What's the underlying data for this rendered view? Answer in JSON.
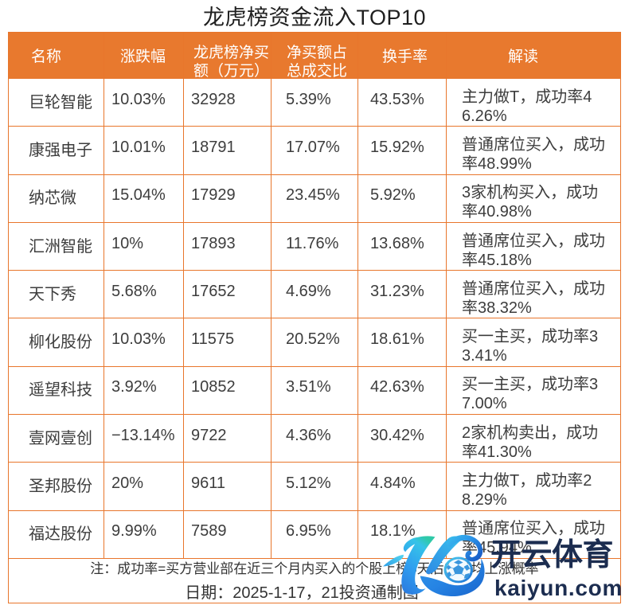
{
  "title": "龙虎榜资金流入TOP10",
  "table": {
    "columns": [
      {
        "key": "name",
        "label": "名称",
        "lines": [
          "名称"
        ]
      },
      {
        "key": "change_pct",
        "label": "涨跌幅",
        "lines": [
          "涨跌幅"
        ]
      },
      {
        "key": "net_buy_wan",
        "label": "龙虎榜净买额（万元）",
        "lines": [
          "龙虎榜净买",
          "额（万元）"
        ]
      },
      {
        "key": "net_buy_ratio",
        "label": "净买额占总成交比",
        "lines": [
          "净买额占",
          "总成交比"
        ]
      },
      {
        "key": "turnover",
        "label": "换手率",
        "lines": [
          "换手率"
        ]
      },
      {
        "key": "interpretation",
        "label": "解读",
        "lines": [
          "解读"
        ]
      }
    ],
    "rows": [
      {
        "name": "巨轮智能",
        "change_pct": "10.03%",
        "net_buy_wan": "32928",
        "net_buy_ratio": "5.39%",
        "turnover": "43.53%",
        "interpretation": "主力做T，成功率46.26%",
        "interpretation_lines": [
          "主力做T，成功率4",
          "6.26%"
        ]
      },
      {
        "name": "康强电子",
        "change_pct": "10.01%",
        "net_buy_wan": "18791",
        "net_buy_ratio": "17.07%",
        "turnover": "15.92%",
        "interpretation": "普通席位买入，成功率48.99%",
        "interpretation_lines": [
          "普通席位买入，成功",
          "率48.99%"
        ]
      },
      {
        "name": "纳芯微",
        "change_pct": "15.04%",
        "net_buy_wan": "17929",
        "net_buy_ratio": "23.45%",
        "turnover": "5.92%",
        "interpretation": "3家机构买入，成功率40.98%",
        "interpretation_lines": [
          "3家机构买入，成功",
          "率40.98%"
        ]
      },
      {
        "name": "汇洲智能",
        "change_pct": "10%",
        "net_buy_wan": "17893",
        "net_buy_ratio": "11.76%",
        "turnover": "13.68%",
        "interpretation": "普通席位买入，成功率45.18%",
        "interpretation_lines": [
          "普通席位买入，成功",
          "率45.18%"
        ]
      },
      {
        "name": "天下秀",
        "change_pct": "5.68%",
        "net_buy_wan": "17652",
        "net_buy_ratio": "4.69%",
        "turnover": "31.23%",
        "interpretation": "普通席位买入，成功率38.32%",
        "interpretation_lines": [
          "普通席位买入，成功",
          "率38.32%"
        ]
      },
      {
        "name": "柳化股份",
        "change_pct": "10.03%",
        "net_buy_wan": "11575",
        "net_buy_ratio": "20.52%",
        "turnover": "18.61%",
        "interpretation": "买一主买，成功率33.41%",
        "interpretation_lines": [
          "买一主买，成功率3",
          "3.41%"
        ]
      },
      {
        "name": "遥望科技",
        "change_pct": "3.92%",
        "net_buy_wan": "10852",
        "net_buy_ratio": "3.51%",
        "turnover": "42.63%",
        "interpretation": "买一主买，成功率37.00%",
        "interpretation_lines": [
          "买一主买，成功率3",
          "7.00%"
        ]
      },
      {
        "name": "壹网壹创",
        "change_pct": "−13.14%",
        "net_buy_wan": "9722",
        "net_buy_ratio": "4.36%",
        "turnover": "30.42%",
        "interpretation": "2家机构卖出，成功率41.30%",
        "interpretation_lines": [
          "2家机构卖出，成功",
          "率41.30%"
        ]
      },
      {
        "name": "圣邦股份",
        "change_pct": "20%",
        "net_buy_wan": "9611",
        "net_buy_ratio": "5.12%",
        "turnover": "4.84%",
        "interpretation": "主力做T，成功率28.29%",
        "interpretation_lines": [
          "主力做T，成功率2",
          "8.29%"
        ]
      },
      {
        "name": "福达股份",
        "change_pct": "9.99%",
        "net_buy_wan": "7589",
        "net_buy_ratio": "6.95%",
        "turnover": "18.1%",
        "interpretation": "普通席位买入，成功率45.94%",
        "interpretation_lines": [
          "普通席位买入，成功",
          "率45.94%"
        ]
      }
    ]
  },
  "footer": {
    "note": "注：成功率=买方营业部在近三个月内买入的个股上榜5天后的平均上涨概率",
    "date_line": "日期：2025-1-17，21投资通制图"
  },
  "watermark": {
    "brand": "开云体育",
    "domain": "kaiyun.com",
    "logo": "kaiyun-k-soccer-logo"
  },
  "colors": {
    "header_orange": "#e8792e",
    "grid_orange": "#e8762c",
    "body_text": "#3d3d3d",
    "watermark_navy": "#1c2d50",
    "logo_teal": "#2bc3a8",
    "logo_cyan": "#35c0e8",
    "logo_blue": "#2e86e0",
    "logo_deep_blue": "#1668c4"
  },
  "chart_data": {
    "type": "table",
    "title": "龙虎榜资金流入TOP10",
    "columns": [
      "名称",
      "涨跌幅",
      "龙虎榜净买额（万元）",
      "净买额占总成交比",
      "换手率",
      "解读"
    ],
    "rows": [
      [
        "巨轮智能",
        "10.03%",
        32928,
        "5.39%",
        "43.53%",
        "主力做T，成功率46.26%"
      ],
      [
        "康强电子",
        "10.01%",
        18791,
        "17.07%",
        "15.92%",
        "普通席位买入，成功率48.99%"
      ],
      [
        "纳芯微",
        "15.04%",
        17929,
        "23.45%",
        "5.92%",
        "3家机构买入，成功率40.98%"
      ],
      [
        "汇洲智能",
        "10%",
        17893,
        "11.76%",
        "13.68%",
        "普通席位买入，成功率45.18%"
      ],
      [
        "天下秀",
        "5.68%",
        17652,
        "4.69%",
        "31.23%",
        "普通席位买入，成功率38.32%"
      ],
      [
        "柳化股份",
        "10.03%",
        11575,
        "20.52%",
        "18.61%",
        "买一主买，成功率33.41%"
      ],
      [
        "遥望科技",
        "3.92%",
        10852,
        "3.51%",
        "42.63%",
        "买一主买，成功率37.00%"
      ],
      [
        "壹网壹创",
        "−13.14%",
        9722,
        "4.36%",
        "30.42%",
        "2家机构卖出，成功率41.30%"
      ],
      [
        "圣邦股份",
        "20%",
        9611,
        "5.12%",
        "4.84%",
        "主力做T，成功率28.29%"
      ],
      [
        "福达股份",
        "9.99%",
        7589,
        "6.95%",
        "18.1%",
        "普通席位买入，成功率45.94%"
      ]
    ],
    "note": "注：成功率=买方营业部在近三个月内买入的个股上榜5天后的平均上涨概率",
    "date": "2025-1-17",
    "source": "21投资通制图"
  }
}
